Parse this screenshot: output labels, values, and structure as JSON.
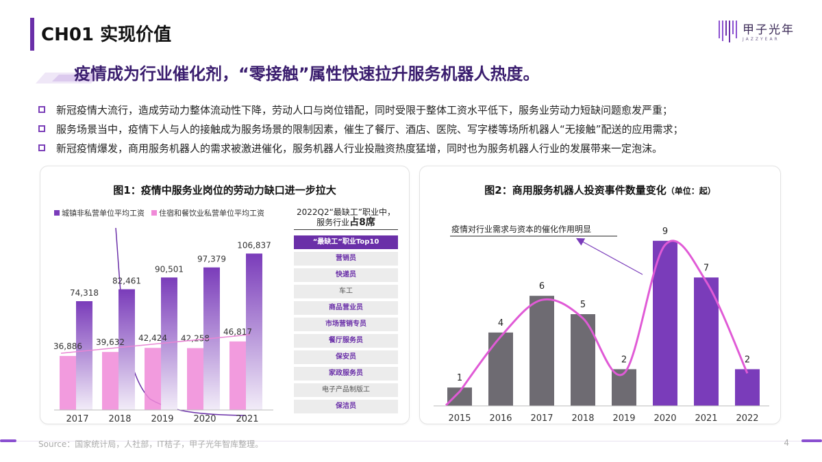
{
  "page": {
    "title": "CH01 实现价值",
    "logo_cn": "甲子光年",
    "logo_en": "JAZZYEAR",
    "headline": "疫情成为行业催化剂，“零接触”属性快速拉升服务机器人热度。",
    "bullets": [
      "新冠疫情大流行，造成劳动力整体流动性下降，劳动人口与岗位错配，同时受限于整体工资水平低下，服务业劳动力短缺问题愈发严重；",
      "服务场景当中，疫情下人与人的接触成为服务场景的限制因素，催生了餐厅、酒店、医院、写字楼等场所机器人“无接触”配送的应用需求；",
      "新冠疫情爆发，商用服务机器人的需求被激进催化，服务机器人行业投融资热度猛增，同时也为服务机器人行业的发展带来一定泡沫。"
    ],
    "source": "Source：国家统计局，人社部，IT桔子，甲子光年智库整理。",
    "page_number": "4"
  },
  "shortage_list": {
    "head_line1": "2022Q2“最缺工”职业中，",
    "head_line2": "服务行业",
    "head_emph": "占8席",
    "title": "“最缺工”职业Top10",
    "items": [
      {
        "label": "营销员",
        "service": true
      },
      {
        "label": "快递员",
        "service": true
      },
      {
        "label": "车工",
        "service": false
      },
      {
        "label": "商品营业员",
        "service": true
      },
      {
        "label": "市场营销专员",
        "service": true
      },
      {
        "label": "餐厅服务员",
        "service": true
      },
      {
        "label": "保安员",
        "service": true
      },
      {
        "label": "家政服务员",
        "service": true
      },
      {
        "label": "电子产品制版工",
        "service": false
      },
      {
        "label": "保洁员",
        "service": true
      }
    ]
  },
  "colors": {
    "purple_dark": "#6a2fa8",
    "purple_bar": "#7a3cba",
    "pink_bar": "#f08ad8",
    "grey_bar": "#6e6b72",
    "curve": "#e05ad6",
    "annot": "#7a3cba"
  },
  "chart_data": [
    {
      "type": "bar",
      "title": "图1：疫情中服务业岗位的劳动力缺口进一步拉大",
      "categories": [
        "2017",
        "2018",
        "2019",
        "2020",
        "2021"
      ],
      "series": [
        {
          "name": "城镇非私营单位平均工资",
          "values": [
            74318,
            82461,
            90501,
            97379,
            106837
          ],
          "labels": [
            "74,318",
            "82,461",
            "90,501",
            "97,379",
            "106,837"
          ]
        },
        {
          "name": "住宿和餐饮业私营单位平均工资",
          "values": [
            36886,
            39632,
            42424,
            42258,
            46817
          ],
          "labels": [
            "36,886",
            "39,632",
            "42,424",
            "42,258",
            "46,817"
          ]
        }
      ],
      "ylim": [
        0,
        115000
      ]
    },
    {
      "type": "bar",
      "title": "图2：商用服务机器人投资事件数量变化",
      "unit": "（单位：起）",
      "categories": [
        "2015",
        "2016",
        "2017",
        "2018",
        "2019",
        "2020",
        "2021",
        "2022"
      ],
      "values": [
        1,
        4,
        6,
        5,
        2,
        9,
        7,
        2
      ],
      "highlight": [
        false,
        false,
        false,
        false,
        false,
        true,
        true,
        true
      ],
      "annotation": "疫情对行业需求与资本的催化作用明显",
      "ylim": [
        0,
        10
      ]
    }
  ]
}
